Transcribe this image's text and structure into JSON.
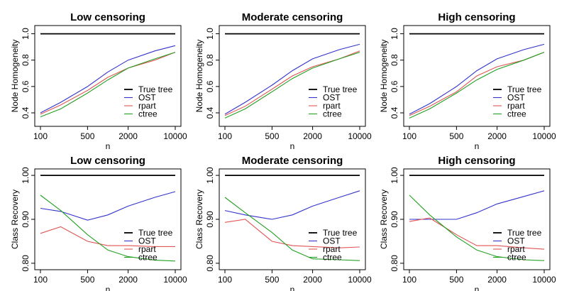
{
  "chart_data": [
    {
      "type": "line",
      "title": "Low censoring",
      "xlabel": "n",
      "ylabel": "Node Homogeneity",
      "x": [
        100,
        200,
        500,
        1000,
        2000,
        5000,
        10000
      ],
      "xticks": [
        "100",
        "500",
        "2000",
        "10000"
      ],
      "yticks": [
        "0.4",
        "0.6",
        "0.8",
        "1.0"
      ],
      "ylim": [
        0.33,
        1.03
      ],
      "legend_position": "bottom-right",
      "series": [
        {
          "name": "True tree",
          "color": "#000000",
          "values": [
            1.0,
            1.0,
            1.0,
            1.0,
            1.0,
            1.0,
            1.0
          ]
        },
        {
          "name": "OST",
          "color": "#3333cc",
          "values": [
            0.4,
            0.48,
            0.6,
            0.71,
            0.8,
            0.87,
            0.91
          ]
        },
        {
          "name": "rpart",
          "color": "#e05555",
          "values": [
            0.39,
            0.46,
            0.57,
            0.67,
            0.74,
            0.8,
            0.86
          ]
        },
        {
          "name": "ctree",
          "color": "#22a022",
          "values": [
            0.37,
            0.43,
            0.55,
            0.65,
            0.74,
            0.81,
            0.86
          ]
        }
      ]
    },
    {
      "type": "line",
      "title": "Moderate censoring",
      "xlabel": "n",
      "ylabel": "Node Homogeneity",
      "x": [
        100,
        200,
        500,
        1000,
        2000,
        5000,
        10000
      ],
      "xticks": [
        "100",
        "500",
        "2000",
        "10000"
      ],
      "yticks": [
        "0.4",
        "0.6",
        "0.8",
        "1.0"
      ],
      "ylim": [
        0.33,
        1.03
      ],
      "legend_position": "bottom-right",
      "series": [
        {
          "name": "True tree",
          "color": "#000000",
          "values": [
            1.0,
            1.0,
            1.0,
            1.0,
            1.0,
            1.0,
            1.0
          ]
        },
        {
          "name": "OST",
          "color": "#3333cc",
          "values": [
            0.39,
            0.48,
            0.61,
            0.72,
            0.81,
            0.88,
            0.92
          ]
        },
        {
          "name": "rpart",
          "color": "#e05555",
          "values": [
            0.38,
            0.45,
            0.58,
            0.68,
            0.75,
            0.81,
            0.87
          ]
        },
        {
          "name": "ctree",
          "color": "#22a022",
          "values": [
            0.36,
            0.43,
            0.56,
            0.66,
            0.74,
            0.81,
            0.86
          ]
        }
      ]
    },
    {
      "type": "line",
      "title": "High censoring",
      "xlabel": "n",
      "ylabel": "Node Homogeneity",
      "x": [
        100,
        200,
        500,
        1000,
        2000,
        5000,
        10000
      ],
      "xticks": [
        "100",
        "500",
        "2000",
        "10000"
      ],
      "yticks": [
        "0.4",
        "0.6",
        "0.8",
        "1.0"
      ],
      "ylim": [
        0.33,
        1.03
      ],
      "legend_position": "bottom-right",
      "series": [
        {
          "name": "True tree",
          "color": "#000000",
          "values": [
            1.0,
            1.0,
            1.0,
            1.0,
            1.0,
            1.0,
            1.0
          ]
        },
        {
          "name": "OST",
          "color": "#3333cc",
          "values": [
            0.39,
            0.47,
            0.6,
            0.72,
            0.81,
            0.88,
            0.92
          ]
        },
        {
          "name": "rpart",
          "color": "#e05555",
          "values": [
            0.38,
            0.45,
            0.56,
            0.68,
            0.75,
            0.8,
            0.86
          ]
        },
        {
          "name": "ctree",
          "color": "#22a022",
          "values": [
            0.36,
            0.43,
            0.55,
            0.65,
            0.73,
            0.8,
            0.86
          ]
        }
      ]
    },
    {
      "type": "line",
      "title": "Low censoring",
      "xlabel": "n",
      "ylabel": "Class Recovery",
      "x": [
        100,
        200,
        500,
        1000,
        2000,
        5000,
        10000
      ],
      "xticks": [
        "100",
        "500",
        "2000",
        "10000"
      ],
      "yticks": [
        "0.80",
        "0.90",
        "1.00"
      ],
      "ylim": [
        0.795,
        1.005
      ],
      "legend_position": "bottom-right",
      "series": [
        {
          "name": "True tree",
          "color": "#000000",
          "values": [
            1.0,
            1.0,
            1.0,
            1.0,
            1.0,
            1.0,
            1.0
          ]
        },
        {
          "name": "OST",
          "color": "#3333cc",
          "values": [
            0.925,
            0.918,
            0.898,
            0.91,
            0.93,
            0.95,
            0.963
          ]
        },
        {
          "name": "rpart",
          "color": "#e05555",
          "values": [
            0.868,
            0.883,
            0.85,
            0.84,
            0.84,
            0.838,
            0.838
          ]
        },
        {
          "name": "ctree",
          "color": "#22a022",
          "values": [
            0.955,
            0.92,
            0.865,
            0.83,
            0.815,
            0.807,
            0.805
          ]
        }
      ]
    },
    {
      "type": "line",
      "title": "Moderate censoring",
      "xlabel": "n",
      "ylabel": "Class Recovery",
      "x": [
        100,
        200,
        500,
        1000,
        2000,
        5000,
        10000
      ],
      "xticks": [
        "100",
        "500",
        "2000",
        "10000"
      ],
      "yticks": [
        "0.80",
        "0.90",
        "1.00"
      ],
      "ylim": [
        0.795,
        1.005
      ],
      "legend_position": "bottom-right",
      "series": [
        {
          "name": "True tree",
          "color": "#000000",
          "values": [
            1.0,
            1.0,
            1.0,
            1.0,
            1.0,
            1.0,
            1.0
          ]
        },
        {
          "name": "OST",
          "color": "#3333cc",
          "values": [
            0.92,
            0.91,
            0.9,
            0.91,
            0.93,
            0.95,
            0.965
          ]
        },
        {
          "name": "rpart",
          "color": "#e05555",
          "values": [
            0.893,
            0.9,
            0.85,
            0.84,
            0.838,
            0.835,
            0.837
          ]
        },
        {
          "name": "ctree",
          "color": "#22a022",
          "values": [
            0.95,
            0.915,
            0.87,
            0.83,
            0.81,
            0.808,
            0.806
          ]
        }
      ]
    },
    {
      "type": "line",
      "title": "High censoring",
      "xlabel": "n",
      "ylabel": "Class Recovery",
      "x": [
        100,
        200,
        500,
        1000,
        2000,
        5000,
        10000
      ],
      "xticks": [
        "100",
        "500",
        "2000",
        "10000"
      ],
      "yticks": [
        "0.80",
        "0.90",
        "1.00"
      ],
      "ylim": [
        0.795,
        1.005
      ],
      "legend_position": "bottom-right",
      "series": [
        {
          "name": "True tree",
          "color": "#000000",
          "values": [
            1.0,
            1.0,
            1.0,
            1.0,
            1.0,
            1.0,
            1.0
          ]
        },
        {
          "name": "OST",
          "color": "#3333cc",
          "values": [
            0.9,
            0.9,
            0.9,
            0.915,
            0.935,
            0.952,
            0.965
          ]
        },
        {
          "name": "rpart",
          "color": "#e05555",
          "values": [
            0.895,
            0.903,
            0.865,
            0.84,
            0.84,
            0.835,
            0.832
          ]
        },
        {
          "name": "ctree",
          "color": "#22a022",
          "values": [
            0.955,
            0.91,
            0.86,
            0.83,
            0.815,
            0.808,
            0.806
          ]
        }
      ]
    }
  ]
}
